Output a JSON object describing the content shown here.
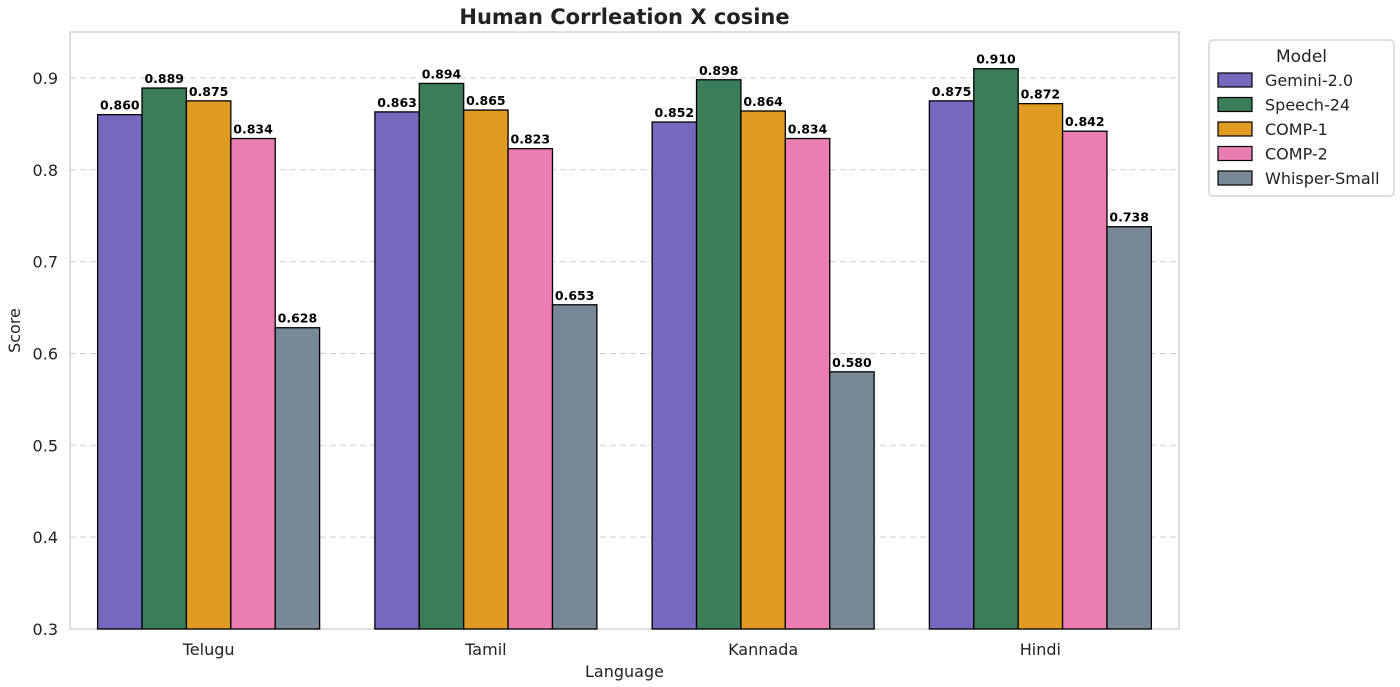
{
  "chart_data": {
    "type": "bar",
    "title": "Human Corrleation X cosine",
    "xlabel": "Language",
    "ylabel": "Score",
    "ylim": [
      0.3,
      0.95
    ],
    "yticks": [
      "0.3",
      "0.4",
      "0.5",
      "0.6",
      "0.7",
      "0.8",
      "0.9"
    ],
    "grid": "horizontal dashed",
    "legend_title": "Model",
    "legend_position": "outside top-right",
    "categories": [
      "Telugu",
      "Tamil",
      "Kannada",
      "Hindi"
    ],
    "series": [
      {
        "name": "Gemini-2.0",
        "color": "#7569BF",
        "values": [
          0.86,
          0.863,
          0.852,
          0.875
        ],
        "labels": [
          "0.860",
          "0.863",
          "0.852",
          "0.875"
        ]
      },
      {
        "name": "Speech-24",
        "color": "#3A7D58",
        "values": [
          0.889,
          0.894,
          0.898,
          0.91
        ],
        "labels": [
          "0.889",
          "0.894",
          "0.898",
          "0.910"
        ]
      },
      {
        "name": "COMP-1",
        "color": "#E09C22",
        "values": [
          0.875,
          0.865,
          0.864,
          0.872
        ],
        "labels": [
          "0.875",
          "0.865",
          "0.864",
          "0.872"
        ]
      },
      {
        "name": "COMP-2",
        "color": "#EC7DB2",
        "values": [
          0.834,
          0.823,
          0.834,
          0.842
        ],
        "labels": [
          "0.834",
          "0.823",
          "0.834",
          "0.842"
        ]
      },
      {
        "name": "Whisper-Small",
        "color": "#788896",
        "values": [
          0.628,
          0.653,
          0.58,
          0.738
        ],
        "labels": [
          "0.628",
          "0.653",
          "0.580",
          "0.738"
        ]
      }
    ]
  }
}
